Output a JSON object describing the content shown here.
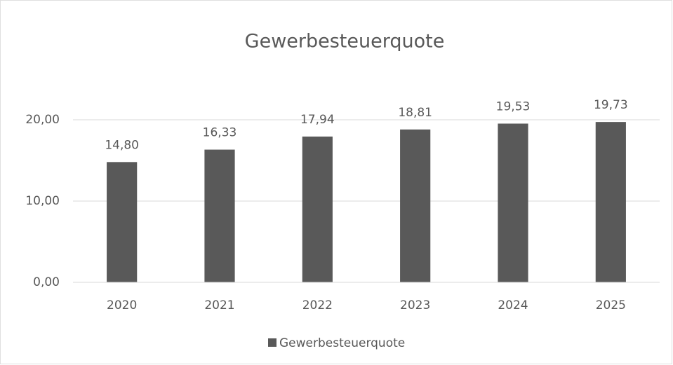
{
  "chart_data": {
    "type": "bar",
    "title": "Gewerbesteuerquote",
    "categories": [
      "2020",
      "2021",
      "2022",
      "2023",
      "2024",
      "2025"
    ],
    "series": [
      {
        "name": "Gewerbesteuerquote",
        "color": "#595959",
        "values": [
          14.8,
          16.33,
          17.94,
          18.81,
          19.53,
          19.73
        ],
        "value_labels": [
          "14,80",
          "16,33",
          "17,94",
          "18,81",
          "19,53",
          "19,73"
        ]
      }
    ],
    "ylim": [
      0,
      25
    ],
    "yticks": [
      {
        "value": 0,
        "label": "0,00"
      },
      {
        "value": 10,
        "label": "10,00"
      },
      {
        "value": 20,
        "label": "20,00"
      }
    ],
    "grid": true,
    "legend": "bottom"
  }
}
